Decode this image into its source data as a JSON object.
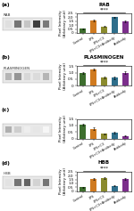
{
  "chart_data": [
    {
      "type": "bar",
      "label": "(a)",
      "title": "RAB",
      "significance": "****",
      "ylabel": "Pixel Intensity\n(Arbitrary unit)",
      "categories": [
        "Control",
        "LPS",
        "LPS+C3",
        "LPS+C3+Antibody",
        "Antibody"
      ],
      "values": [
        0.55,
        1.55,
        0.85,
        2.0,
        1.5
      ],
      "errors": [
        0.06,
        0.12,
        0.08,
        0.1,
        0.1
      ],
      "colors": [
        "#3d6e2e",
        "#d07a20",
        "#8b8b2e",
        "#2e6e8b",
        "#7b2e8b"
      ],
      "ylim": [
        0,
        2.5
      ],
      "yticks": [
        0,
        0.5,
        {
          "value": 1,
          "label": "1.0"
        },
        1.5,
        {
          "value": 2,
          "label": "2.0"
        },
        2.5
      ],
      "bands": [
        0.22,
        0.62,
        0.34,
        0.8,
        0.6
      ],
      "band_range": [
        0,
        1
      ]
    },
    {
      "type": "bar",
      "label": "(b)",
      "title": "PLASMINOGEN",
      "significance": "****",
      "ylabel": "Pixel Intensity\n(Arbitrary unit)",
      "categories": [
        "Control",
        "LPS",
        "LPS+C3",
        "LPS+C3+Antibody",
        "Antibody"
      ],
      "values": [
        1.0,
        1.25,
        0.65,
        0.6,
        1.0
      ],
      "errors": [
        0.07,
        0.09,
        0.07,
        0.08,
        0.08
      ],
      "colors": [
        "#3d6e2e",
        "#d07a20",
        "#8b8b2e",
        "#2e6e8b",
        "#7b2e8b"
      ],
      "ylim": [
        0,
        1.5
      ],
      "yticks": [
        0,
        0.5,
        {
          "value": 1,
          "label": "1.0"
        },
        1.5
      ],
      "bands": [
        0.4,
        0.5,
        0.26,
        0.24,
        0.4
      ],
      "band_range": [
        0,
        1
      ]
    },
    {
      "type": "bar",
      "label": "(c)",
      "ylabel": "Pixel Intensity\n(Arbitrary unit)",
      "categories": [
        "Control",
        "LPS",
        "LPS+C3",
        "LPS+C3+Antibody",
        "Antibody"
      ],
      "values": [
        1.05,
        0.75,
        0.35,
        0.45,
        0.2
      ],
      "errors": [
        0.08,
        0.07,
        0.05,
        0.06,
        0.04
      ],
      "colors": [
        "#3d6e2e",
        "#d07a20",
        "#8b8b2e",
        "#2e6e8b",
        "#7b2e8b"
      ],
      "ylim": [
        0,
        1.5
      ],
      "yticks": [
        0,
        0.5,
        {
          "value": 1,
          "label": "1.0"
        },
        1.5
      ],
      "bands": [
        0.42,
        0.3,
        0.14,
        0.18,
        0.08
      ],
      "band_range": [
        0,
        1
      ]
    },
    {
      "type": "bar",
      "label": "(d)",
      "title": "HBB",
      "significance": "****",
      "ylabel": "Pixel Intensity\n(Arbitrary unit)",
      "categories": [
        "Control",
        "LPS",
        "LPS+C3",
        "LPS+C3+Antibody",
        "Antibody"
      ],
      "values": [
        0.5,
        1.55,
        1.7,
        0.7,
        1.55
      ],
      "errors": [
        0.05,
        0.12,
        0.11,
        0.07,
        0.13
      ],
      "colors": [
        "#3d6e2e",
        "#d07a20",
        "#8b8b2e",
        "#2e6e8b",
        "#7b2e8b"
      ],
      "ylim": [
        0,
        2.5
      ],
      "yticks": [
        0,
        0.5,
        {
          "value": 1,
          "label": "1.0"
        },
        1.5,
        {
          "value": 2,
          "label": "2.0"
        },
        2.5
      ],
      "bands": [
        0.2,
        0.62,
        0.68,
        0.28,
        0.62
      ],
      "band_range": [
        0,
        1
      ]
    }
  ]
}
